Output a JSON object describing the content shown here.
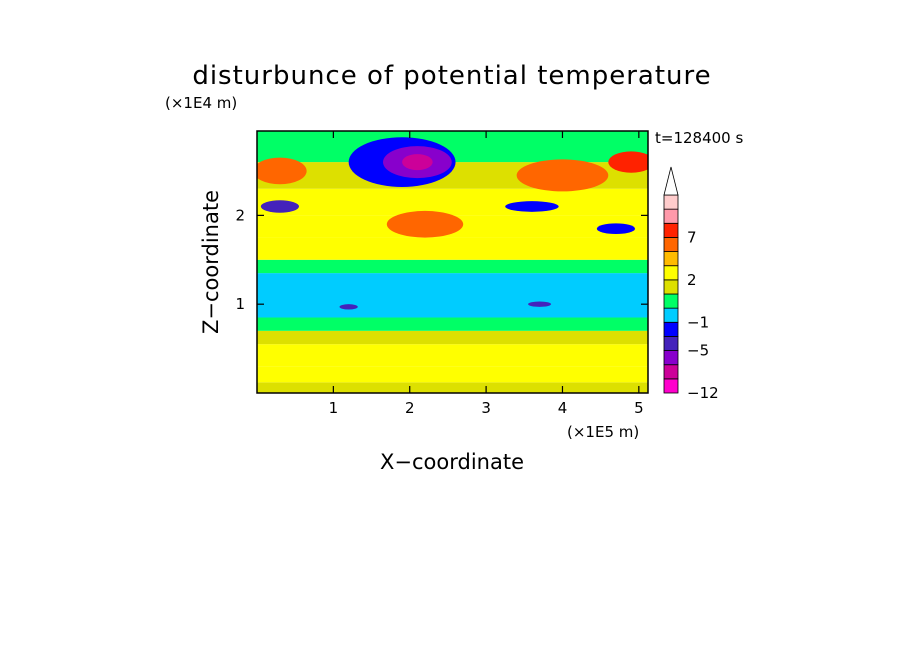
{
  "chart_data": {
    "type": "heatmap",
    "title": "disturbunce of potential temperature",
    "xlabel": "X−coordinate",
    "ylabel": "Z−coordinate",
    "x_unit": "(×1E5 m)",
    "y_unit": "(×1E4 m)",
    "time_label": "t=128400 s",
    "xlim": [
      0,
      5.12
    ],
    "ylim": [
      0,
      2.95
    ],
    "x_ticks": [
      {
        "value": 1,
        "label": "1"
      },
      {
        "value": 2,
        "label": "2"
      },
      {
        "value": 3,
        "label": "3"
      },
      {
        "value": 4,
        "label": "4"
      },
      {
        "value": 5,
        "label": "5"
      }
    ],
    "y_ticks": [
      {
        "value": 1,
        "label": "1"
      },
      {
        "value": 2,
        "label": "2"
      }
    ],
    "colorbar": {
      "levels": [
        -12,
        -10,
        -7,
        -5,
        -3,
        -1,
        0,
        1,
        2,
        4,
        5,
        7,
        9,
        11
      ],
      "colors": [
        "#ff00cc",
        "#cc0099",
        "#8800cc",
        "#4422bb",
        "#0000ff",
        "#00ccff",
        "#00ff66",
        "#dde000",
        "#ffff00",
        "#ffbb00",
        "#ff6600",
        "#ff2200",
        "#ff99aa",
        "#ffcccc"
      ],
      "labels": [
        {
          "value": -12,
          "label": "−12"
        },
        {
          "value": -5,
          "label": "−5"
        },
        {
          "value": -1,
          "label": "−1"
        },
        {
          "value": 2,
          "label": "2"
        },
        {
          "value": 7,
          "label": "7"
        }
      ],
      "extend": "max"
    },
    "field_bands": [
      {
        "z": [
          0,
          0.12
        ],
        "value": 1.5
      },
      {
        "z": [
          0.12,
          0.3
        ],
        "value": 2.5
      },
      {
        "z": [
          0.3,
          0.55
        ],
        "value": 2.5
      },
      {
        "z": [
          0.55,
          0.7
        ],
        "value": 1.2
      },
      {
        "z": [
          0.7,
          0.85
        ],
        "value": 0.5
      },
      {
        "z": [
          0.85,
          1.35
        ],
        "value": -0.5
      },
      {
        "z": [
          1.35,
          1.5
        ],
        "value": 0.5
      },
      {
        "z": [
          1.5,
          1.75
        ],
        "value": 2.5
      },
      {
        "z": [
          1.75,
          2.0
        ],
        "value": 3.5
      },
      {
        "z": [
          2.0,
          2.3
        ],
        "value": 2.5
      },
      {
        "z": [
          2.3,
          2.6
        ],
        "value": 1.5
      },
      {
        "z": [
          2.6,
          2.95
        ],
        "value": 0.5
      }
    ],
    "features": [
      {
        "x": 0.3,
        "z": 2.5,
        "rx": 0.35,
        "rz": 0.15,
        "value": 6
      },
      {
        "x": 0.3,
        "z": 2.1,
        "rx": 0.25,
        "rz": 0.07,
        "value": -4
      },
      {
        "x": 1.9,
        "z": 2.6,
        "rx": 0.7,
        "rz": 0.28,
        "value": -3
      },
      {
        "x": 2.1,
        "z": 2.6,
        "rx": 0.45,
        "rz": 0.18,
        "value": -6
      },
      {
        "x": 2.1,
        "z": 2.6,
        "rx": 0.2,
        "rz": 0.09,
        "value": -8
      },
      {
        "x": 2.2,
        "z": 1.9,
        "rx": 0.5,
        "rz": 0.15,
        "value": 6
      },
      {
        "x": 3.6,
        "z": 2.1,
        "rx": 0.35,
        "rz": 0.06,
        "value": -3
      },
      {
        "x": 4.0,
        "z": 2.45,
        "rx": 0.6,
        "rz": 0.18,
        "value": 6
      },
      {
        "x": 4.9,
        "z": 2.6,
        "rx": 0.3,
        "rz": 0.12,
        "value": 7
      },
      {
        "x": 4.7,
        "z": 1.85,
        "rx": 0.25,
        "rz": 0.06,
        "value": -3
      },
      {
        "x": 3.7,
        "z": 1.0,
        "rx": 0.15,
        "rz": 0.03,
        "value": -4
      },
      {
        "x": 1.2,
        "z": 0.97,
        "rx": 0.12,
        "rz": 0.03,
        "value": -4
      }
    ]
  }
}
